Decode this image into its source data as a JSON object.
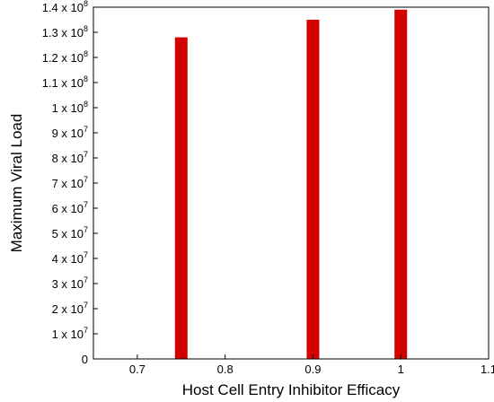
{
  "chart_data": {
    "type": "bar",
    "xlabel": "Host Cell Entry Inhibitor Efficacy",
    "ylabel": "Maximum Viral Load",
    "xlim": [
      0.65,
      1.1
    ],
    "ylim": [
      0,
      140000000
    ],
    "grid": false,
    "color": "#d40000",
    "x": [
      0.75,
      0.9,
      1.0
    ],
    "values": [
      128000000,
      135000000,
      139000000
    ],
    "x_ticks": [
      {
        "value": 0.7,
        "label": "0.7"
      },
      {
        "value": 0.8,
        "label": "0.8"
      },
      {
        "value": 0.9,
        "label": "0.9"
      },
      {
        "value": 1.0,
        "label": "1"
      },
      {
        "value": 1.1,
        "label": "1.1"
      }
    ],
    "y_ticks": [
      {
        "value": 0,
        "mant": "0",
        "exp": ""
      },
      {
        "value": 10000000,
        "mant": "1 x 10",
        "exp": "7"
      },
      {
        "value": 20000000,
        "mant": "2 x 10",
        "exp": "7"
      },
      {
        "value": 30000000,
        "mant": "3 x 10",
        "exp": "7"
      },
      {
        "value": 40000000,
        "mant": "4 x 10",
        "exp": "7"
      },
      {
        "value": 50000000,
        "mant": "5 x 10",
        "exp": "7"
      },
      {
        "value": 60000000,
        "mant": "6 x 10",
        "exp": "7"
      },
      {
        "value": 70000000,
        "mant": "7 x 10",
        "exp": "7"
      },
      {
        "value": 80000000,
        "mant": "8 x 10",
        "exp": "7"
      },
      {
        "value": 90000000,
        "mant": "9 x 10",
        "exp": "7"
      },
      {
        "value": 100000000,
        "mant": "1 x 10",
        "exp": "8"
      },
      {
        "value": 110000000,
        "mant": "1.1 x 10",
        "exp": "8"
      },
      {
        "value": 120000000,
        "mant": "1.2 x 10",
        "exp": "8"
      },
      {
        "value": 130000000,
        "mant": "1.3 x 10",
        "exp": "8"
      },
      {
        "value": 140000000,
        "mant": "1.4 x 10",
        "exp": "8"
      }
    ]
  }
}
